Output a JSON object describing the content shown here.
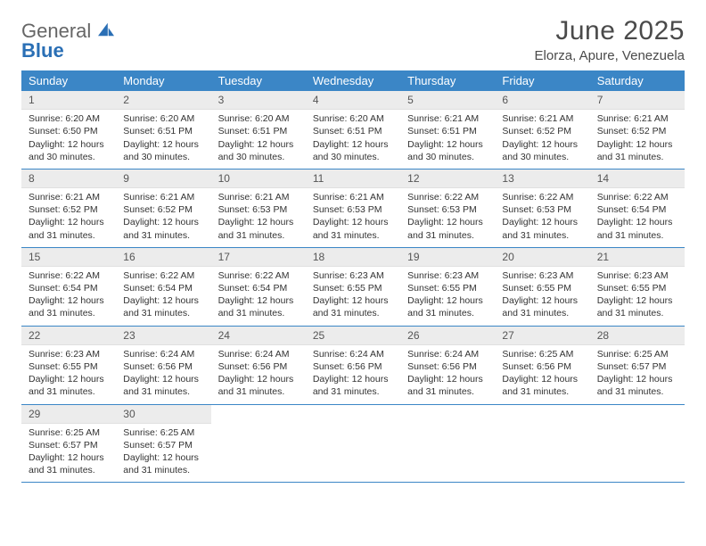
{
  "logo": {
    "text_top": "General",
    "text_bottom": "Blue",
    "sail_color": "#2a6fb5",
    "text_color_top": "#666666",
    "text_color_bottom": "#2a6fb5"
  },
  "title": "June 2025",
  "location": "Elorza, Apure, Venezuela",
  "header_bg": "#3b86c6",
  "daynum_bg": "#ececec",
  "border_color": "#3b86c6",
  "day_names": [
    "Sunday",
    "Monday",
    "Tuesday",
    "Wednesday",
    "Thursday",
    "Friday",
    "Saturday"
  ],
  "days": [
    {
      "n": 1,
      "sr": "6:20 AM",
      "ss": "6:50 PM",
      "dl": "12 hours and 30 minutes."
    },
    {
      "n": 2,
      "sr": "6:20 AM",
      "ss": "6:51 PM",
      "dl": "12 hours and 30 minutes."
    },
    {
      "n": 3,
      "sr": "6:20 AM",
      "ss": "6:51 PM",
      "dl": "12 hours and 30 minutes."
    },
    {
      "n": 4,
      "sr": "6:20 AM",
      "ss": "6:51 PM",
      "dl": "12 hours and 30 minutes."
    },
    {
      "n": 5,
      "sr": "6:21 AM",
      "ss": "6:51 PM",
      "dl": "12 hours and 30 minutes."
    },
    {
      "n": 6,
      "sr": "6:21 AM",
      "ss": "6:52 PM",
      "dl": "12 hours and 30 minutes."
    },
    {
      "n": 7,
      "sr": "6:21 AM",
      "ss": "6:52 PM",
      "dl": "12 hours and 31 minutes."
    },
    {
      "n": 8,
      "sr": "6:21 AM",
      "ss": "6:52 PM",
      "dl": "12 hours and 31 minutes."
    },
    {
      "n": 9,
      "sr": "6:21 AM",
      "ss": "6:52 PM",
      "dl": "12 hours and 31 minutes."
    },
    {
      "n": 10,
      "sr": "6:21 AM",
      "ss": "6:53 PM",
      "dl": "12 hours and 31 minutes."
    },
    {
      "n": 11,
      "sr": "6:21 AM",
      "ss": "6:53 PM",
      "dl": "12 hours and 31 minutes."
    },
    {
      "n": 12,
      "sr": "6:22 AM",
      "ss": "6:53 PM",
      "dl": "12 hours and 31 minutes."
    },
    {
      "n": 13,
      "sr": "6:22 AM",
      "ss": "6:53 PM",
      "dl": "12 hours and 31 minutes."
    },
    {
      "n": 14,
      "sr": "6:22 AM",
      "ss": "6:54 PM",
      "dl": "12 hours and 31 minutes."
    },
    {
      "n": 15,
      "sr": "6:22 AM",
      "ss": "6:54 PM",
      "dl": "12 hours and 31 minutes."
    },
    {
      "n": 16,
      "sr": "6:22 AM",
      "ss": "6:54 PM",
      "dl": "12 hours and 31 minutes."
    },
    {
      "n": 17,
      "sr": "6:22 AM",
      "ss": "6:54 PM",
      "dl": "12 hours and 31 minutes."
    },
    {
      "n": 18,
      "sr": "6:23 AM",
      "ss": "6:55 PM",
      "dl": "12 hours and 31 minutes."
    },
    {
      "n": 19,
      "sr": "6:23 AM",
      "ss": "6:55 PM",
      "dl": "12 hours and 31 minutes."
    },
    {
      "n": 20,
      "sr": "6:23 AM",
      "ss": "6:55 PM",
      "dl": "12 hours and 31 minutes."
    },
    {
      "n": 21,
      "sr": "6:23 AM",
      "ss": "6:55 PM",
      "dl": "12 hours and 31 minutes."
    },
    {
      "n": 22,
      "sr": "6:23 AM",
      "ss": "6:55 PM",
      "dl": "12 hours and 31 minutes."
    },
    {
      "n": 23,
      "sr": "6:24 AM",
      "ss": "6:56 PM",
      "dl": "12 hours and 31 minutes."
    },
    {
      "n": 24,
      "sr": "6:24 AM",
      "ss": "6:56 PM",
      "dl": "12 hours and 31 minutes."
    },
    {
      "n": 25,
      "sr": "6:24 AM",
      "ss": "6:56 PM",
      "dl": "12 hours and 31 minutes."
    },
    {
      "n": 26,
      "sr": "6:24 AM",
      "ss": "6:56 PM",
      "dl": "12 hours and 31 minutes."
    },
    {
      "n": 27,
      "sr": "6:25 AM",
      "ss": "6:56 PM",
      "dl": "12 hours and 31 minutes."
    },
    {
      "n": 28,
      "sr": "6:25 AM",
      "ss": "6:57 PM",
      "dl": "12 hours and 31 minutes."
    },
    {
      "n": 29,
      "sr": "6:25 AM",
      "ss": "6:57 PM",
      "dl": "12 hours and 31 minutes."
    },
    {
      "n": 30,
      "sr": "6:25 AM",
      "ss": "6:57 PM",
      "dl": "12 hours and 31 minutes."
    }
  ],
  "labels": {
    "sunrise": "Sunrise:",
    "sunset": "Sunset:",
    "daylight": "Daylight:"
  }
}
